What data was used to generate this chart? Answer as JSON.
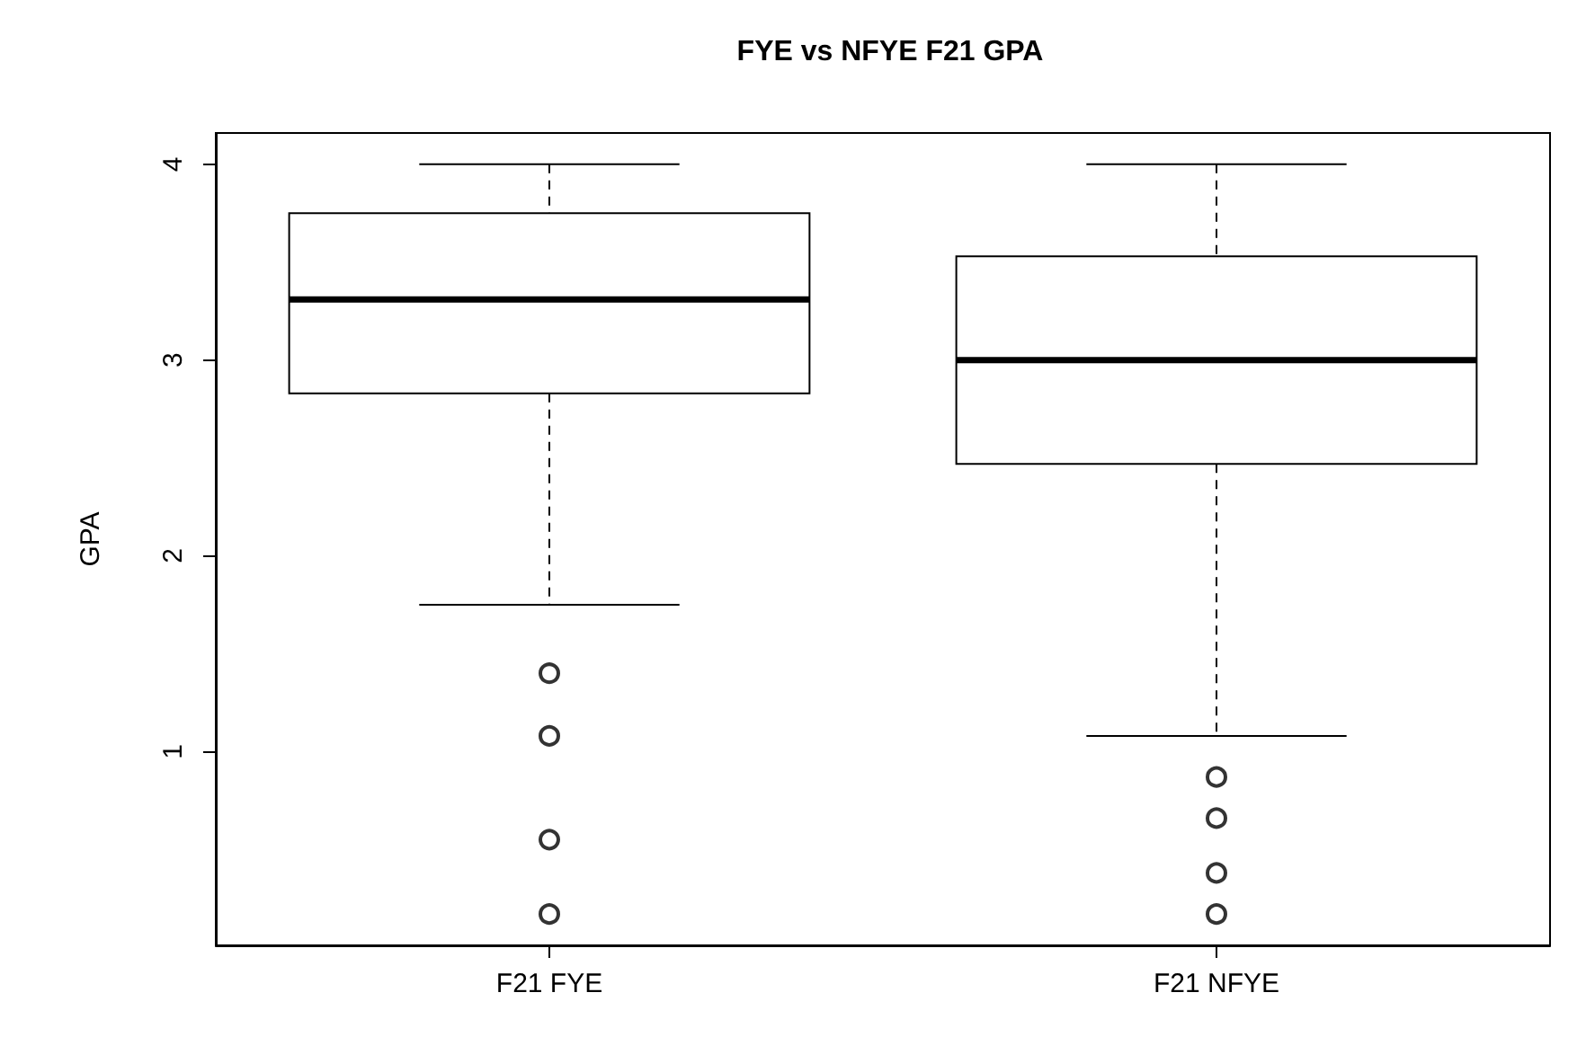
{
  "chart_data": {
    "type": "box",
    "title": "FYE vs NFYE F21 GPA",
    "ylabel": "GPA",
    "categories": [
      "F21 FYE",
      "F21 NFYE"
    ],
    "boxes": [
      {
        "low": 1.75,
        "q1": 2.83,
        "median": 3.31,
        "q3": 3.75,
        "high": 4.0,
        "outliers": [
          1.4,
          1.08,
          0.55,
          0.17
        ]
      },
      {
        "low": 1.08,
        "q1": 2.47,
        "median": 3.0,
        "q3": 3.53,
        "high": 4.0,
        "outliers": [
          0.87,
          0.66,
          0.38,
          0.17
        ]
      }
    ],
    "ylim": [
      0.01,
      4.16
    ],
    "yticks": [
      1,
      2,
      3,
      4
    ],
    "grid": false
  }
}
